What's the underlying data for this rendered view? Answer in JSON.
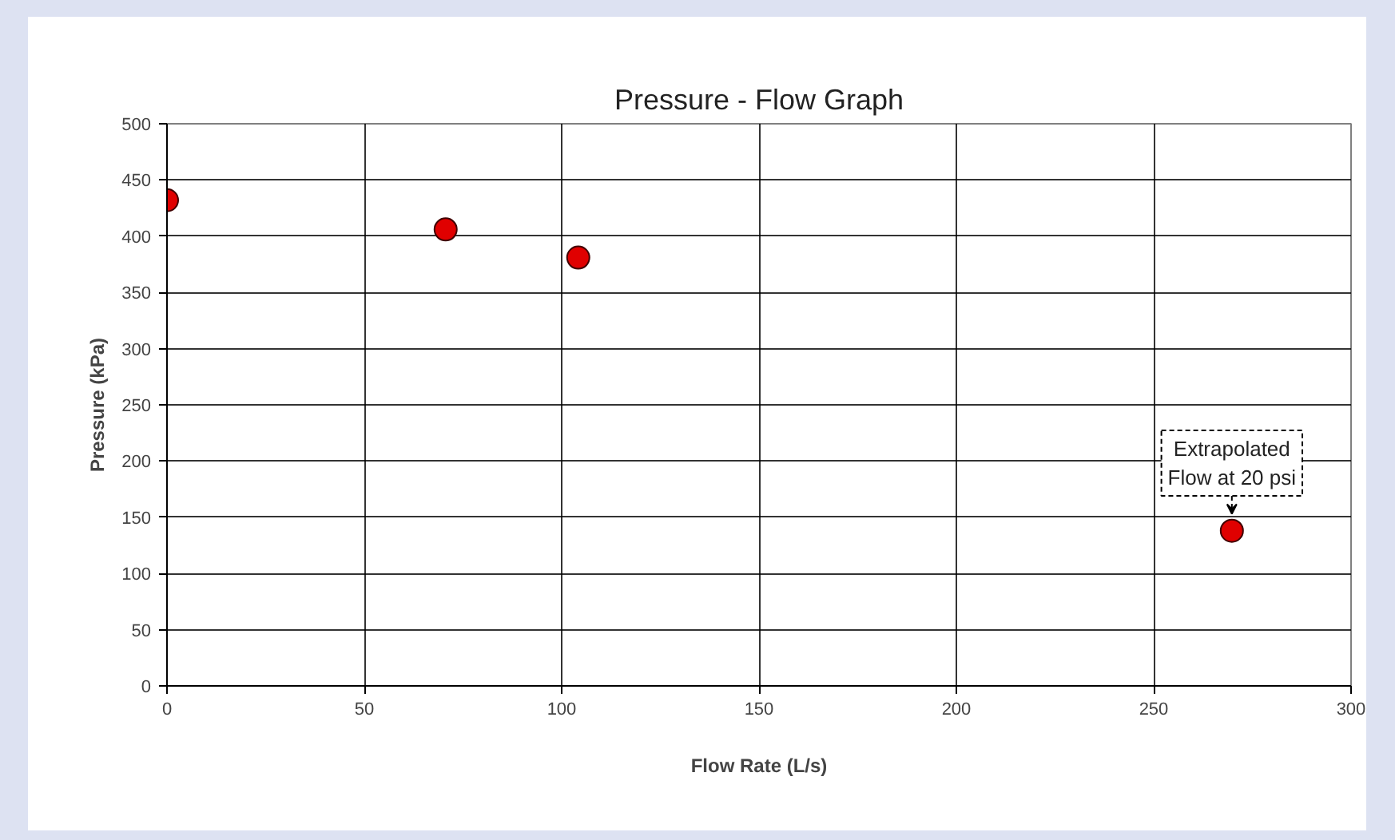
{
  "chart_data": {
    "type": "scatter",
    "title": "Pressure - Flow Graph",
    "xlabel": "Flow Rate (L/s)",
    "ylabel": "Pressure (kPa)",
    "x": [
      0,
      70.6,
      104.2,
      269.8
    ],
    "series": [
      {
        "color": "#e00000",
        "values": [
          432,
          406,
          381,
          138
        ]
      }
    ],
    "xlim": [
      0,
      300
    ],
    "xticks": [
      0,
      50,
      100,
      150,
      200,
      250,
      300
    ],
    "ylim": [
      0,
      500
    ],
    "yticks": [
      0,
      50,
      100,
      150,
      200,
      250,
      300,
      350,
      400,
      450,
      500
    ],
    "grid": true,
    "marker": "circle",
    "annotations": [
      {
        "text": "Extrapolated\nFlow at 20 psi",
        "x": 269.8,
        "y": 138
      }
    ]
  }
}
